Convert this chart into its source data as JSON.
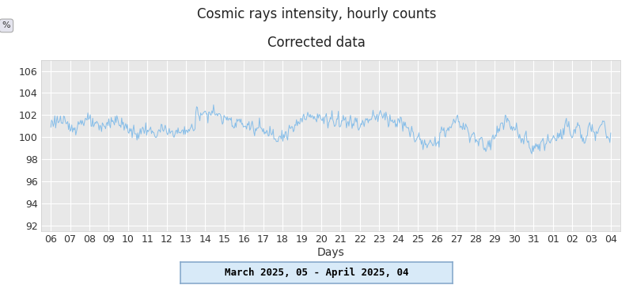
{
  "title_line1": "Cosmic rays intensity, hourly counts",
  "title_line2": "Corrected data",
  "xlabel": "Days",
  "ylabel": "%",
  "date_label": "March 2025, 05 - April 2025, 04",
  "x_tick_labels": [
    "06",
    "07",
    "08",
    "09",
    "10",
    "11",
    "12",
    "13",
    "14",
    "15",
    "16",
    "17",
    "18",
    "19",
    "20",
    "21",
    "22",
    "23",
    "24",
    "25",
    "26",
    "27",
    "28",
    "29",
    "30",
    "31",
    "01",
    "02",
    "03",
    "04"
  ],
  "ylim": [
    91.5,
    107.0
  ],
  "yticks": [
    92,
    94,
    96,
    98,
    100,
    102,
    104,
    106
  ],
  "line_color": "#85bde8",
  "bg_color": "#ffffff",
  "plot_bg_color": "#e8e8e8",
  "grid_color": "#ffffff",
  "title_fontsize": 12,
  "axis_fontsize": 10,
  "tick_fontsize": 9
}
